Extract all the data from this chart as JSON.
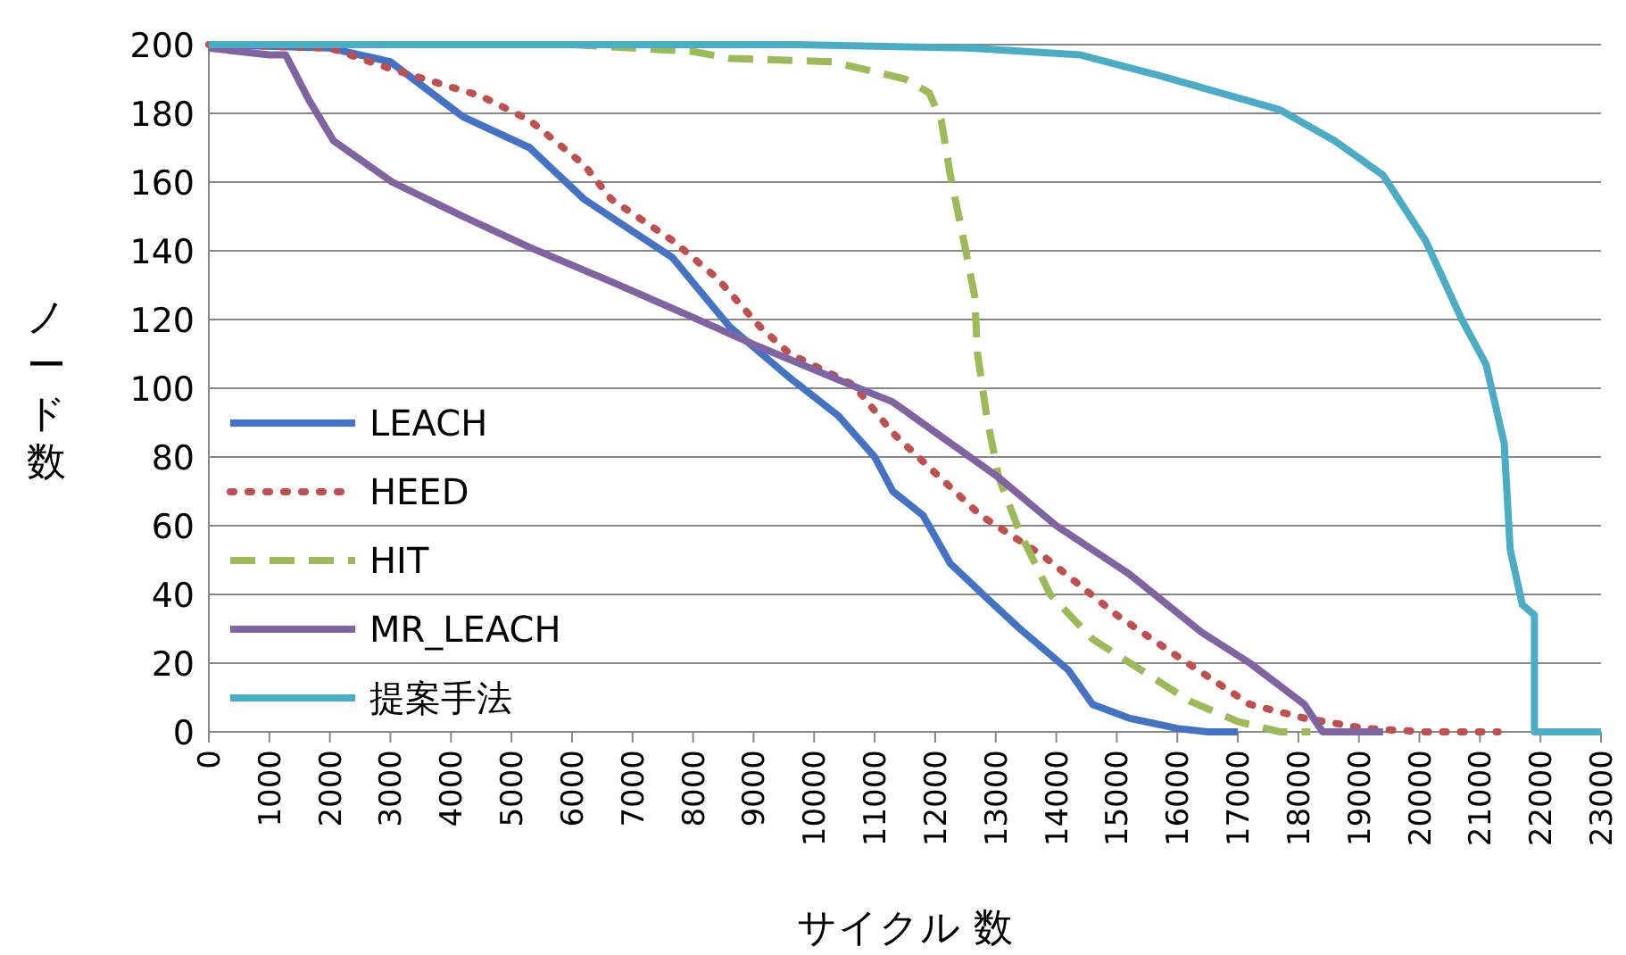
{
  "chart_data": {
    "type": "line",
    "xlabel": "サイクル 数",
    "ylabel": "ノード数",
    "xlim": [
      0,
      23000
    ],
    "ylim": [
      0,
      200
    ],
    "xticks": [
      0,
      1000,
      2000,
      3000,
      4000,
      5000,
      6000,
      7000,
      8000,
      9000,
      10000,
      11000,
      12000,
      13000,
      14000,
      15000,
      16000,
      17000,
      18000,
      19000,
      20000,
      21000,
      22000,
      23000
    ],
    "yticks": [
      0,
      20,
      40,
      60,
      80,
      100,
      120,
      140,
      160,
      180,
      200
    ],
    "grid": "y",
    "legend": "left",
    "series": [
      {
        "name": "LEACH",
        "color": "#4472c4",
        "line_style": "solid",
        "x": [
          0,
          2000,
          3000,
          4200,
          5300,
          6200,
          7660,
          8600,
          9600,
          10400,
          11000,
          11300,
          11800,
          12250,
          12850,
          13400,
          14200,
          14600,
          15200,
          16000,
          16500,
          17000
        ],
        "values": [
          200,
          199,
          195,
          179,
          170,
          155,
          138,
          118,
          103,
          92,
          80,
          70,
          63,
          49,
          39,
          30,
          18,
          8,
          4,
          1,
          0,
          0
        ]
      },
      {
        "name": "HEED",
        "color": "#c0504d",
        "line_style": "dotted",
        "x": [
          0,
          2000,
          3000,
          4500,
          5300,
          6200,
          6650,
          7660,
          8400,
          9100,
          9600,
          10650,
          11300,
          11900,
          12750,
          13800,
          15000,
          16000,
          17200,
          18100,
          19100,
          20100,
          21300
        ],
        "values": [
          200,
          199,
          193,
          185,
          178,
          165,
          155,
          143,
          132,
          118,
          110,
          101,
          87,
          77,
          63,
          51,
          34,
          22,
          8,
          4,
          1,
          0,
          0
        ]
      },
      {
        "name": "HIT",
        "color": "#9bbb59",
        "line_style": "dashed",
        "x": [
          6000,
          8000,
          8600,
          10300,
          11500,
          11900,
          12100,
          12250,
          12450,
          12650,
          12700,
          12850,
          13050,
          13400,
          13900,
          14600,
          15400,
          16200,
          17000,
          17700,
          18200
        ],
        "values": [
          200,
          198,
          196,
          195,
          190,
          186,
          178,
          162,
          145,
          127,
          110,
          92,
          74,
          58,
          40,
          27,
          18,
          9,
          3,
          0,
          0
        ]
      },
      {
        "name": "MR_LEACH",
        "color": "#8064a2",
        "line_style": "solid",
        "x": [
          0,
          1000,
          1270,
          1650,
          2060,
          3030,
          4200,
          5300,
          6650,
          7950,
          9100,
          10600,
          11300,
          13050,
          14000,
          15200,
          16400,
          17200,
          18100,
          18400,
          19400
        ],
        "values": [
          199,
          197,
          197,
          184,
          172,
          160,
          150,
          141,
          131,
          121,
          112,
          101,
          96,
          74,
          60,
          46,
          29,
          20,
          8,
          0,
          0
        ]
      },
      {
        "name": "提案手法",
        "color": "#4bacc6",
        "line_style": "solid",
        "x": [
          0,
          9700,
          12550,
          14400,
          15700,
          16700,
          17700,
          18600,
          19400,
          20100,
          20700,
          21100,
          21400,
          21500,
          21700,
          21900,
          21900,
          23000
        ],
        "values": [
          200,
          200,
          199,
          197,
          191,
          186,
          181,
          172,
          162,
          143,
          120,
          107,
          84,
          53,
          37,
          34,
          0,
          0
        ]
      }
    ]
  }
}
